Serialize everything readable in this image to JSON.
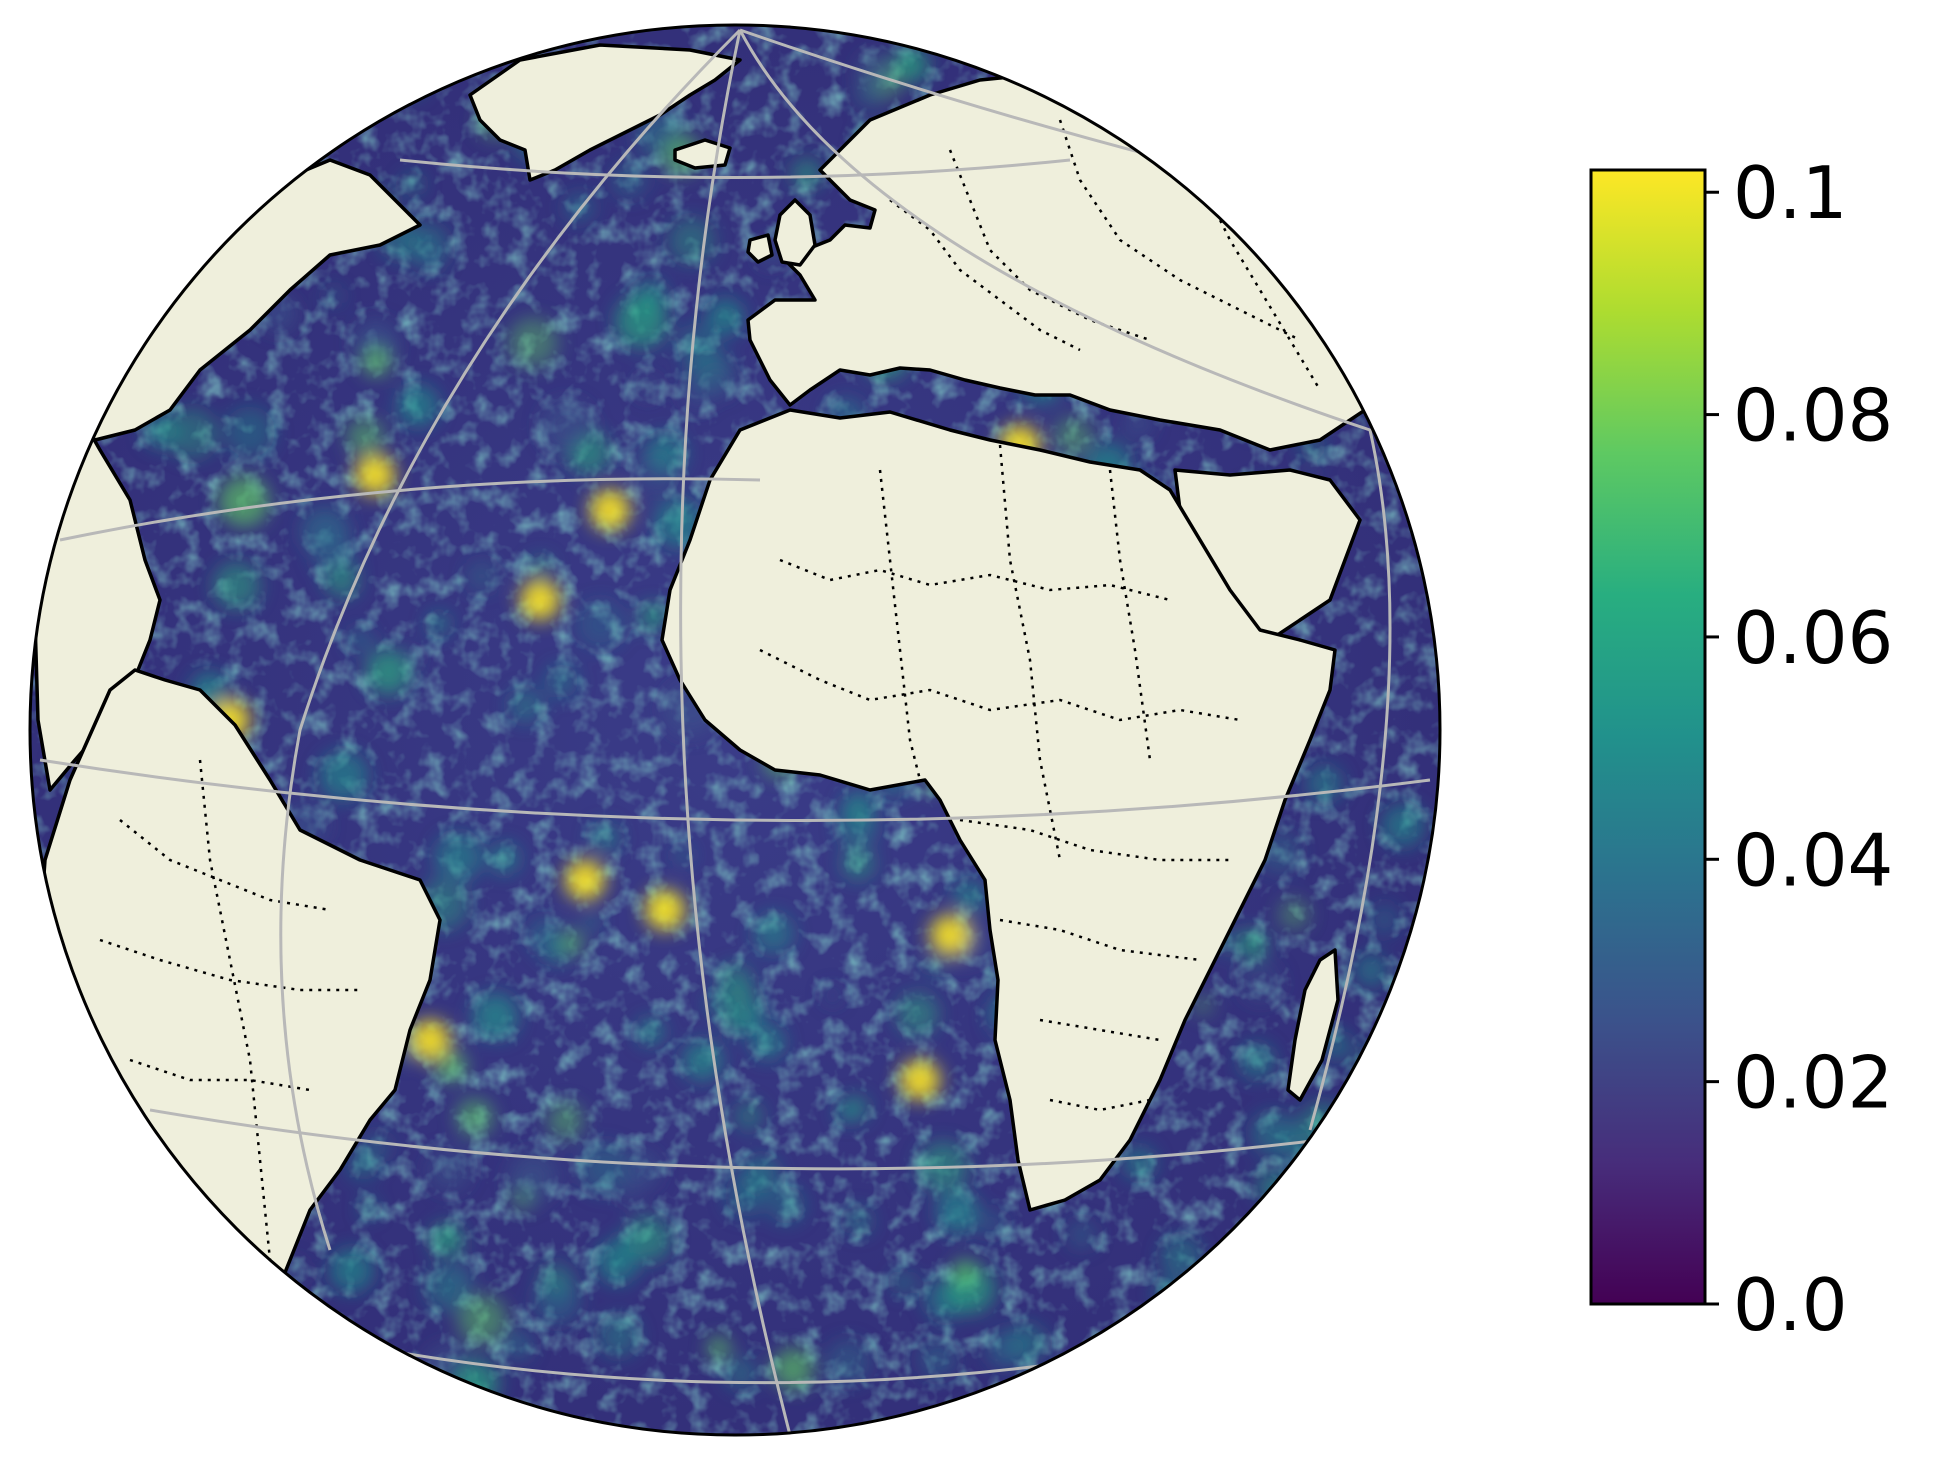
{
  "map": {
    "projection": "orthographic",
    "center": {
      "lon": -10,
      "lat": 5
    },
    "field": "ocean scalar field (viridis colormap), land shaded beige",
    "colors": {
      "land": "#efefdc",
      "coastline": "#000000",
      "borders": "#000000",
      "graticule": "#b8b8b8",
      "ocean_base": "#3b2c7a"
    },
    "gridlines": {
      "lon_step": 30,
      "lat_step": 30
    }
  },
  "colorbar": {
    "colormap": "viridis",
    "stops": [
      "#440154",
      "#472d7b",
      "#3b528b",
      "#2c728e",
      "#21918c",
      "#28ae80",
      "#5ec962",
      "#addc30",
      "#fde725"
    ],
    "ticks": [
      {
        "value": 0.0,
        "label": "0.0"
      },
      {
        "value": 0.02,
        "label": "0.02"
      },
      {
        "value": 0.04,
        "label": "0.04"
      },
      {
        "value": 0.06,
        "label": "0.06"
      },
      {
        "value": 0.08,
        "label": "0.08"
      },
      {
        "value": 0.1,
        "label": "0.1"
      }
    ],
    "vmin": 0.0,
    "vmax": 0.102
  }
}
